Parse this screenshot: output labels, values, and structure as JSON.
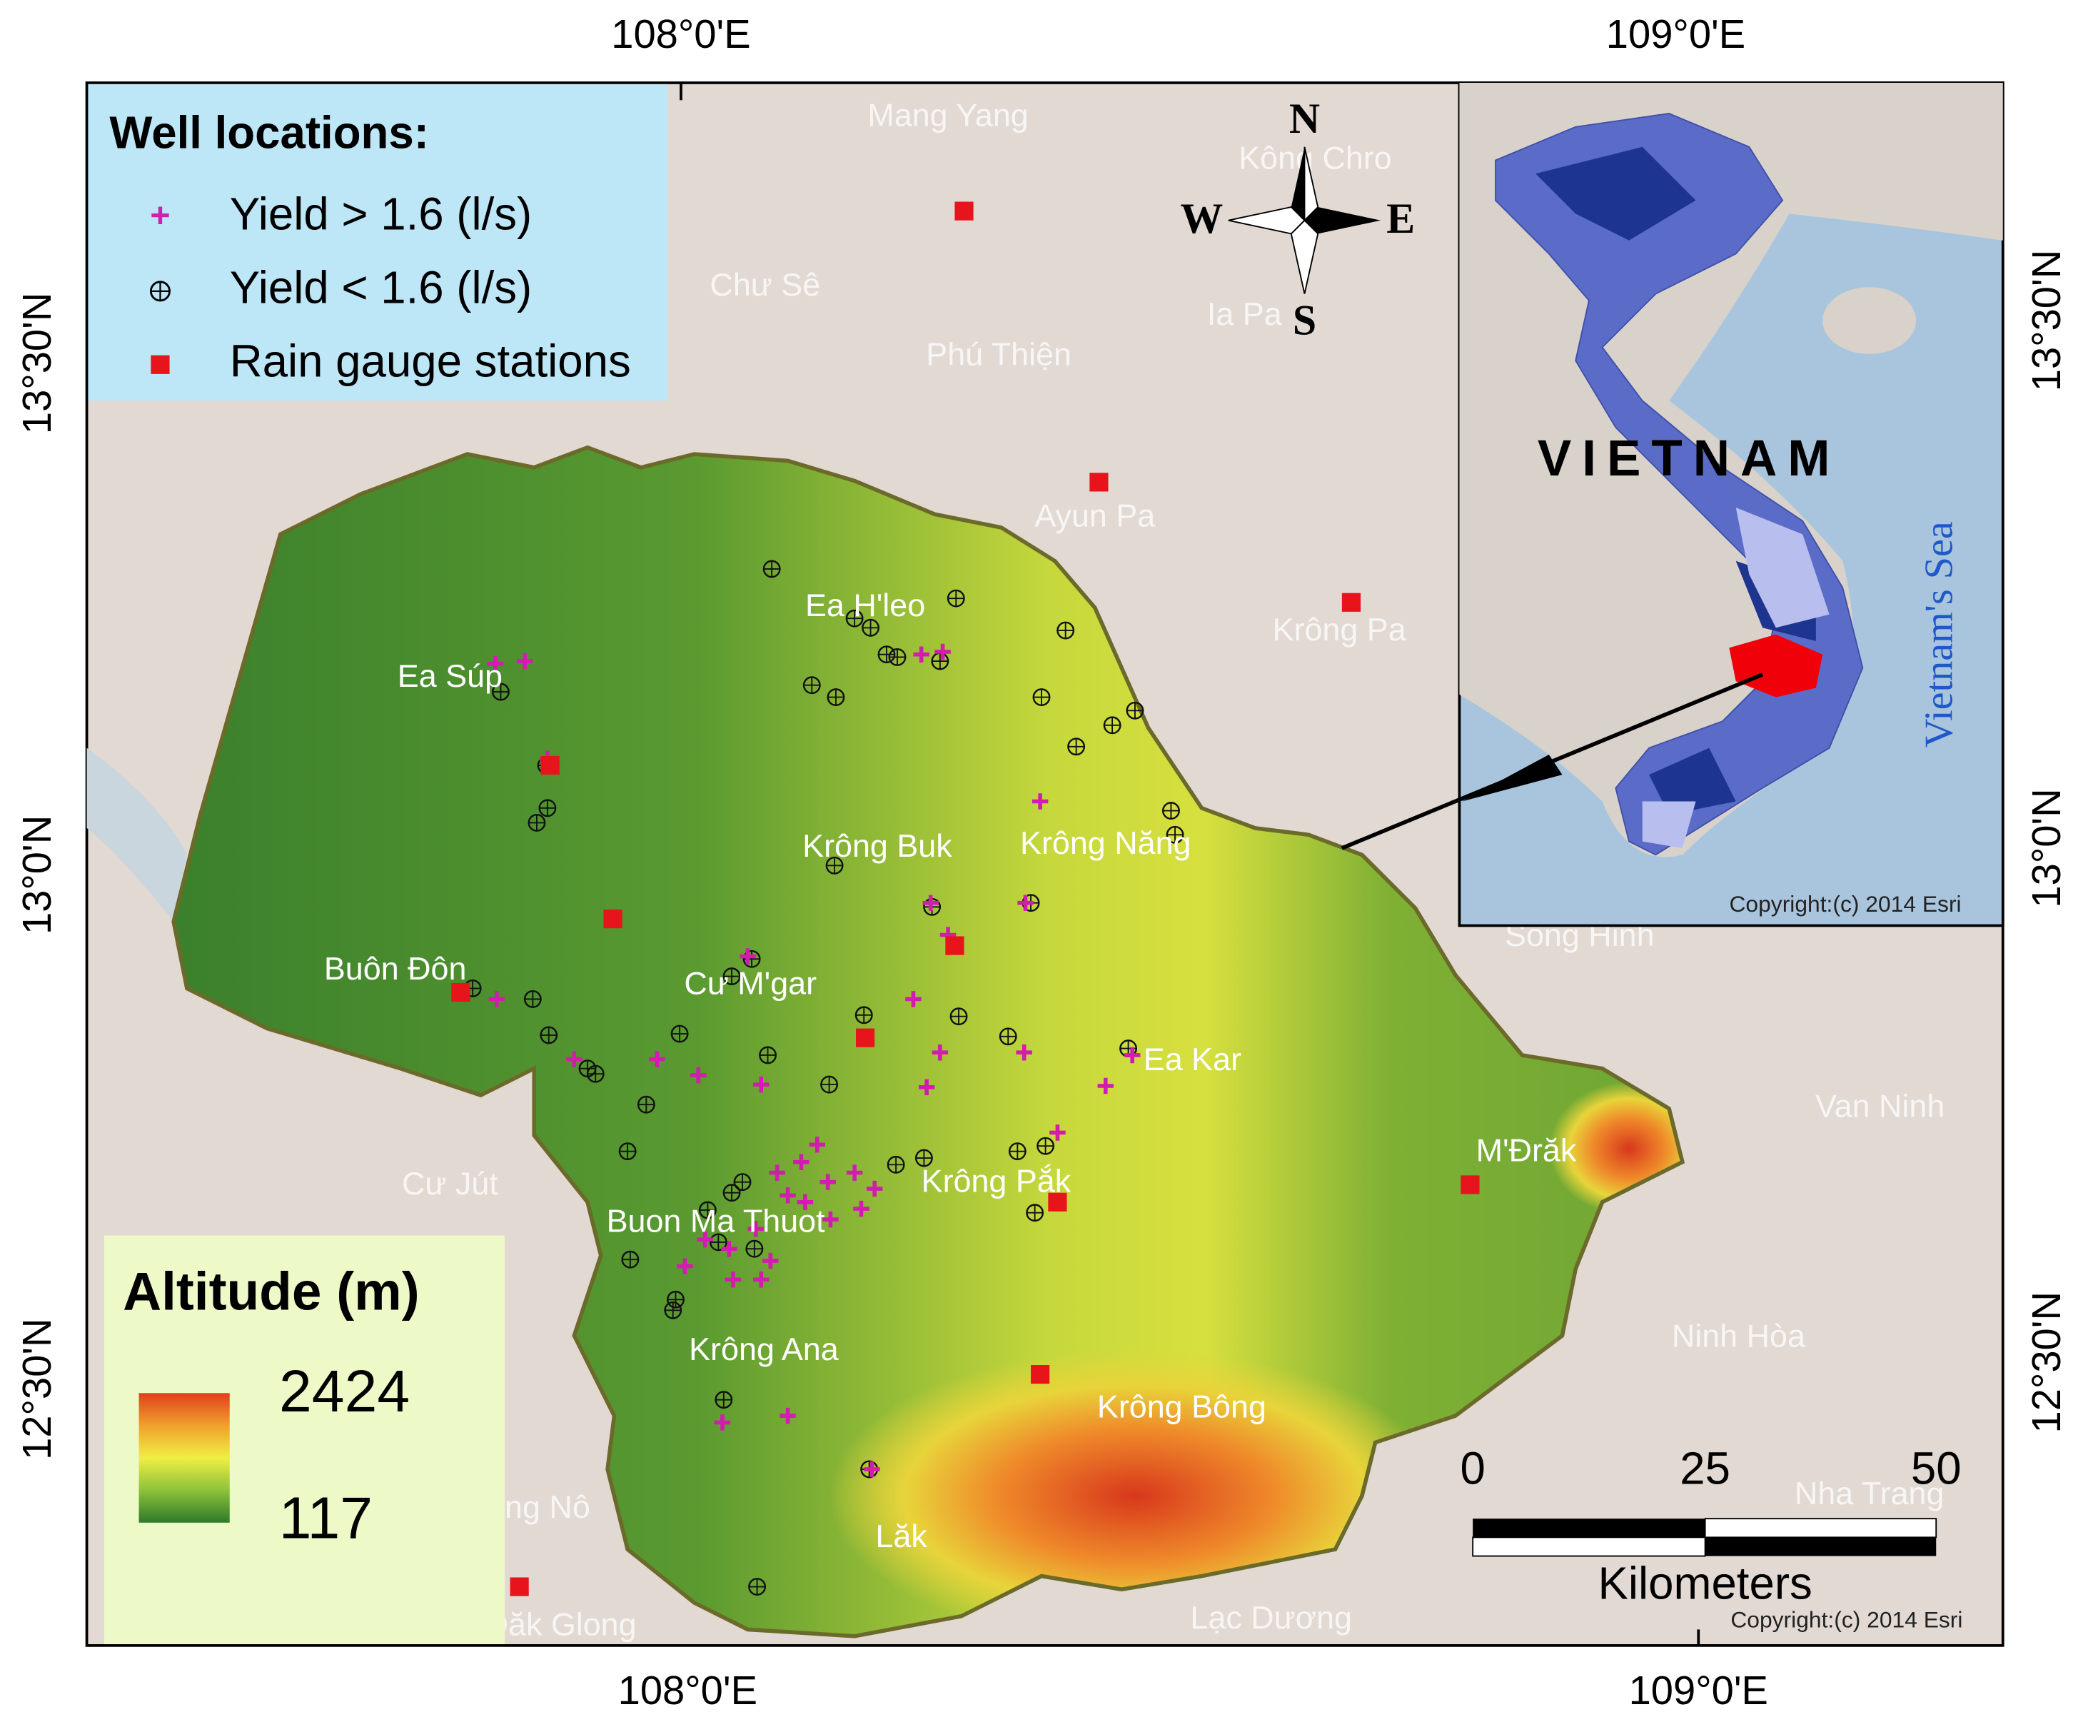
{
  "axes": {
    "top": [
      "108°0'E",
      "109°0'E"
    ],
    "bottom": [
      "108°0'E",
      "109°0'E"
    ],
    "left": [
      "13°30'N",
      "13°0'N",
      "12°30'N"
    ],
    "right": [
      "13°30'N",
      "13°0'N",
      "12°30'N"
    ]
  },
  "legend": {
    "title": "Well locations:",
    "items": [
      "Yield > 1.6 (l/s)",
      "Yield < 1.6 (l/s)",
      "Rain gauge stations"
    ]
  },
  "altitude_legend": {
    "title": "Altitude (m)",
    "max": 2424,
    "min": 117
  },
  "compass": {
    "n": "N",
    "s": "S",
    "e": "E",
    "w": "W"
  },
  "places": [
    "Mang Yang",
    "Kông Chro",
    "Chư Sê",
    "Ia Pa",
    "Phú Thiện",
    "Ayun Pa",
    "Ea H'leo",
    "Krông Pa",
    "Ea Súp",
    "Krông Buk",
    "Krông Năng",
    "Sông Hinh",
    "Buôn Đôn",
    "Cư M'gar",
    "Ea Kar",
    "Van Ninh",
    "M'Đrăk",
    "Cư Jút",
    "Krông Pắk",
    "Buon Ma Thuot",
    "Ninh Hòa",
    "Krông Ana",
    "Krông Bông",
    "Nha Trang",
    "Lăk",
    "ng Nô",
    "Đăk Glong",
    "Lạc Dương"
  ],
  "inset": {
    "country": "VIETNAM",
    "sea": "Vietnam's Sea",
    "copyright": "Copyright:(c) 2014 Esri"
  },
  "scale_bar": {
    "ticks": [
      0,
      25,
      50
    ],
    "unit": "Kilometers"
  },
  "copyright": "Copyright:(c) 2014 Esri"
}
